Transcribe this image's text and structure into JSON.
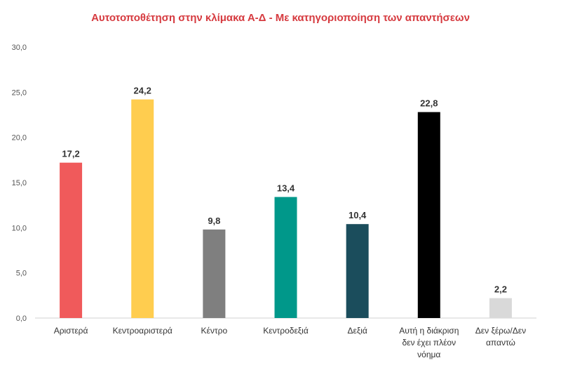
{
  "chart_data": {
    "type": "bar",
    "title": "Αυτοτοποθέτηση στην κλίμακα Α-Δ - Με κατηγοριοποίηση των απαντήσεων",
    "xlabel": "",
    "ylabel": "",
    "ylim": [
      0,
      30
    ],
    "yticks": [
      "0,0",
      "5,0",
      "10,0",
      "15,0",
      "20,0",
      "25,0",
      "30,0"
    ],
    "grid": false,
    "categories": [
      [
        "Αριστερά"
      ],
      [
        "Κεντροαριστερά"
      ],
      [
        "Κέντρο"
      ],
      [
        "Κεντροδεξιά"
      ],
      [
        "Δεξιά"
      ],
      [
        "Αυτή η διάκριση",
        "δεν έχει πλέον",
        "νόημα"
      ],
      [
        "Δεν ξέρω/Δεν",
        "απαντώ"
      ]
    ],
    "values": [
      17.2,
      24.2,
      9.8,
      13.4,
      10.4,
      22.8,
      2.2
    ],
    "value_labels": [
      "17,2",
      "24,2",
      "9,8",
      "13,4",
      "10,4",
      "22,8",
      "2,2"
    ],
    "colors": [
      "#f05a5b",
      "#ffcd4f",
      "#7f7f7f",
      "#00988a",
      "#1b4d5c",
      "#000000",
      "#d9d9d9"
    ]
  }
}
